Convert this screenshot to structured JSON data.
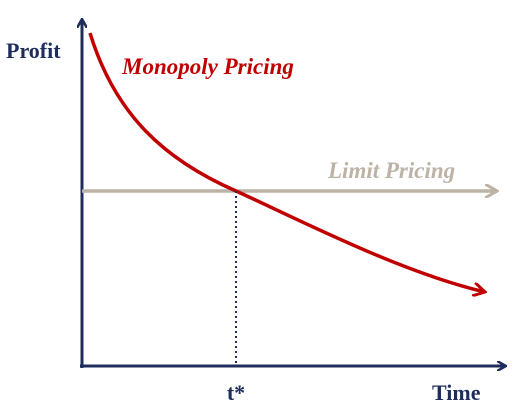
{
  "y_axis_label": "Profit",
  "x_axis_label": "Time",
  "marker_label": "t*",
  "curves": [
    {
      "label": "Monopoly Pricing"
    },
    {
      "label": "Limit Pricing"
    }
  ]
}
